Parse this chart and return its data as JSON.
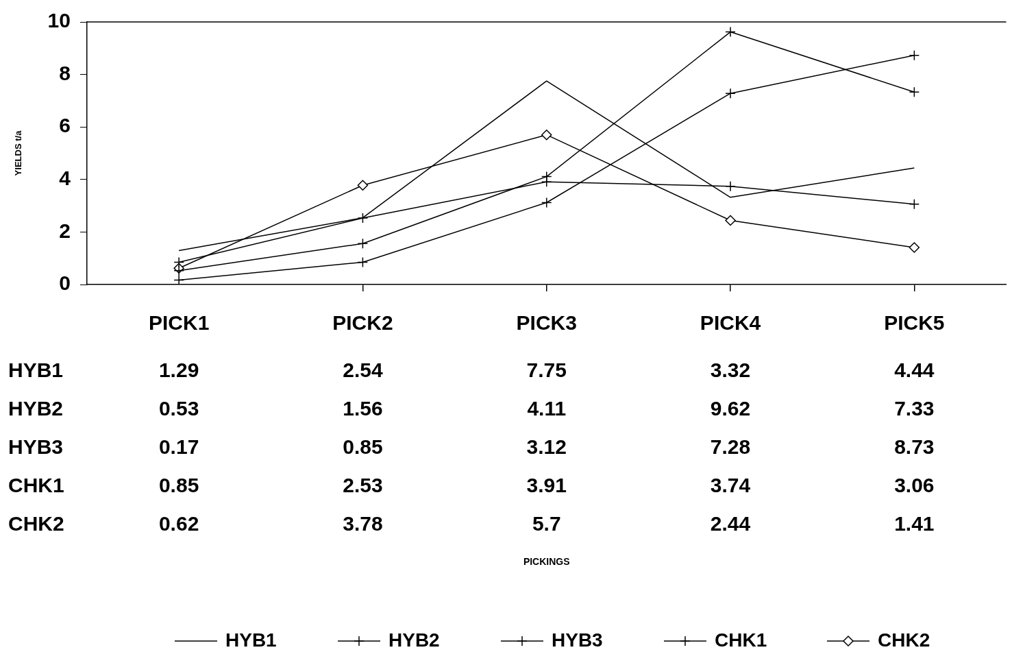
{
  "chart_data": {
    "type": "line",
    "annotations": [
      "PICKINGS"
    ],
    "ylabel": "YIELDS t/a",
    "categories": [
      "PICK1",
      "PICK2",
      "PICK3",
      "PICK4",
      "PICK5"
    ],
    "ylim": [
      0,
      10
    ],
    "yticks": [
      0,
      2,
      4,
      6,
      8,
      10
    ],
    "grid": false,
    "legend": "bottom",
    "data_labels": true,
    "line_style": "solid",
    "series": [
      {
        "name": "HYB1",
        "color": "#000000",
        "marker": "none",
        "values": [
          1.29,
          2.54,
          7.75,
          3.32,
          4.44
        ]
      },
      {
        "name": "HYB2",
        "color": "#000000",
        "marker": "cross",
        "values": [
          0.53,
          1.56,
          4.11,
          9.62,
          7.33
        ]
      },
      {
        "name": "HYB3",
        "color": "#000000",
        "marker": "cross",
        "values": [
          0.17,
          0.85,
          3.12,
          7.28,
          8.73
        ]
      },
      {
        "name": "CHK1",
        "color": "#000000",
        "marker": "cross",
        "values": [
          0.85,
          2.53,
          3.91,
          3.74,
          3.06
        ]
      },
      {
        "name": "CHK2",
        "color": "#000000",
        "marker": "diamond",
        "values": [
          0.62,
          3.78,
          5.7,
          2.44,
          1.41
        ]
      }
    ]
  }
}
